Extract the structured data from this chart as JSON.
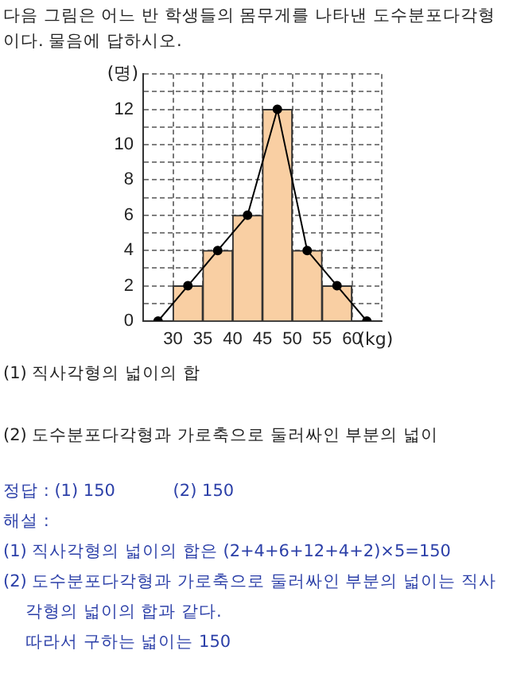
{
  "chart_data": {
    "type": "histogram",
    "title": "다음 그림은 어느 반 학생들의 몸무게를 나타낸 도수분포다각형이다. 물음에 답하시오.",
    "xlabel": "(kg)",
    "ylabel": "(명)",
    "bins": [
      30,
      35,
      40,
      45,
      50,
      55,
      60
    ],
    "values": [
      2,
      4,
      6,
      12,
      4,
      2
    ],
    "color": "#f9cfa3",
    "xlim": [
      25,
      65
    ],
    "xticks": [
      {
        "value": 25,
        "label": null
      },
      30,
      35,
      40,
      45,
      50,
      55,
      60,
      {
        "value": 65,
        "label": null
      }
    ],
    "ylim": [
      0,
      14
    ],
    "yticks": [
      0,
      {
        "value": 1,
        "label": null
      },
      2,
      {
        "value": 3,
        "label": null
      },
      4,
      {
        "value": 5,
        "label": null
      },
      6,
      {
        "value": 7,
        "label": null
      },
      8,
      {
        "value": 9,
        "label": null
      },
      10,
      {
        "value": 11,
        "label": null
      },
      12,
      {
        "value": 13,
        "label": null
      },
      {
        "value": 14,
        "label": null
      }
    ],
    "grid": true,
    "legend": false,
    "series": [
      {
        "type": "line",
        "x": [
          27.5,
          32.5,
          37.5,
          42.5,
          47.5,
          52.5,
          57.5,
          62.5
        ],
        "values": [
          0,
          2,
          4,
          6,
          12,
          4,
          2,
          0
        ],
        "color": "#000000",
        "marker": "circle",
        "line_style": "solid"
      }
    ],
    "annotations": [
      "(1) 직사각형의 넓이의 합",
      "(2) 도수분포다각형과 가로축으로 둘러싸인 부분의 넓이",
      "정답 : (1) 150　　　 (2) 150",
      "해설 :",
      "(1) 직사각형의 넓이의 합은 (2+4+6+12+4+2)×5=150",
      "(2) 도수분포다각형과 가로축으로 둘러싸인 부분의 넓이는 직사각형의 넓이의 합과 같다.",
      "따라서 구하는 넓이는 150"
    ]
  }
}
